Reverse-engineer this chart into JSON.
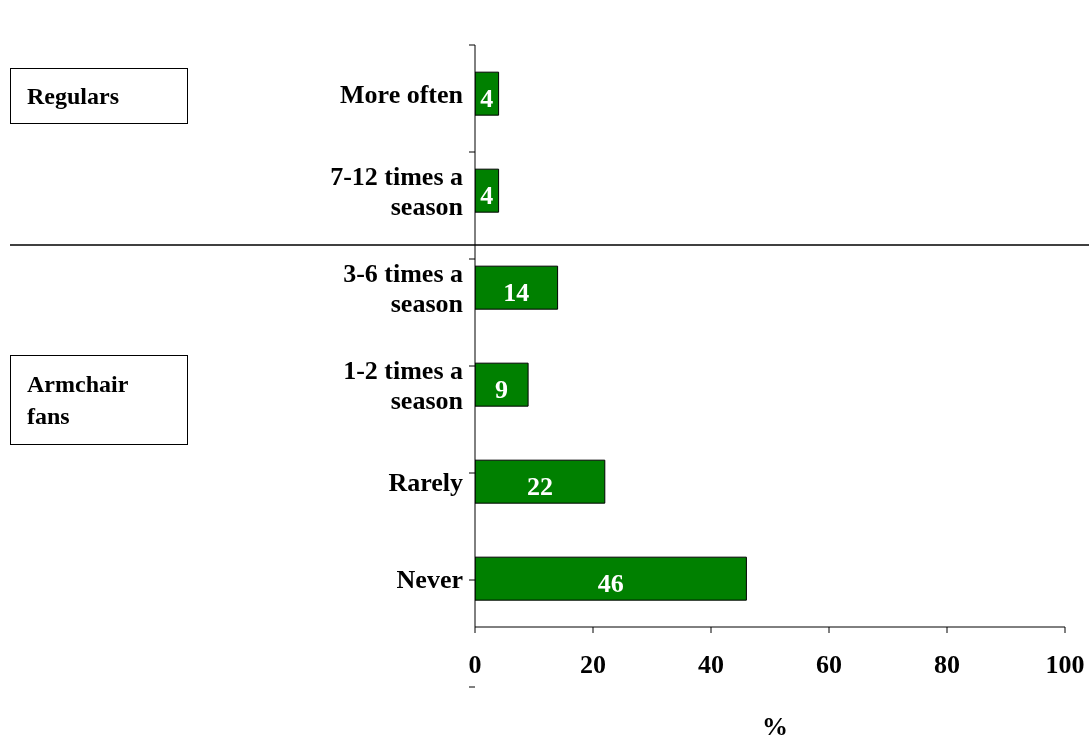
{
  "chart_data": {
    "type": "bar",
    "orientation": "horizontal",
    "categories": [
      "More often",
      "7-12 times a season",
      "3-6 times a season",
      "1-2 times a season",
      "Rarely",
      "Never"
    ],
    "values": [
      4,
      4,
      14,
      9,
      22,
      46
    ],
    "color": "#008000",
    "data_labels": true,
    "xlabel": "%",
    "xlim": [
      0,
      100
    ],
    "xticks": [
      0,
      20,
      40,
      60,
      80,
      100
    ],
    "grid": false,
    "legend": false,
    "annotations": [
      "Regulars",
      "Armchair fans"
    ]
  }
}
